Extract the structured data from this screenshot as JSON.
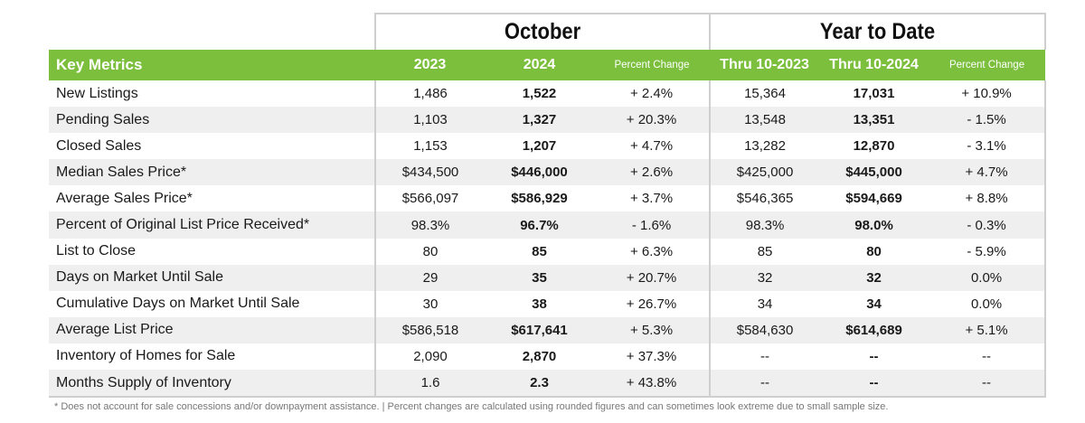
{
  "groups": {
    "october": "October",
    "ytd": "Year to Date"
  },
  "headers": {
    "metric": "Key Metrics",
    "y2023": "2023",
    "y2024": "2024",
    "pct1": "Percent Change",
    "ytd2023": "Thru 10-2023",
    "ytd2024": "Thru 10-2024",
    "pct2": "Percent Change"
  },
  "accent_color": "#7bbf3d",
  "rows": [
    {
      "label": "New Listings",
      "v2023": "1,486",
      "v2024": "1,522",
      "pct": "+ 2.4%",
      "ytd2023": "15,364",
      "ytd2024": "17,031",
      "ytdpct": "+ 10.9%"
    },
    {
      "label": "Pending Sales",
      "v2023": "1,103",
      "v2024": "1,327",
      "pct": "+ 20.3%",
      "ytd2023": "13,548",
      "ytd2024": "13,351",
      "ytdpct": "- 1.5%"
    },
    {
      "label": "Closed Sales",
      "v2023": "1,153",
      "v2024": "1,207",
      "pct": "+ 4.7%",
      "ytd2023": "13,282",
      "ytd2024": "12,870",
      "ytdpct": "- 3.1%"
    },
    {
      "label": "Median Sales Price*",
      "v2023": "$434,500",
      "v2024": "$446,000",
      "pct": "+ 2.6%",
      "ytd2023": "$425,000",
      "ytd2024": "$445,000",
      "ytdpct": "+ 4.7%"
    },
    {
      "label": "Average Sales Price*",
      "v2023": "$566,097",
      "v2024": "$586,929",
      "pct": "+ 3.7%",
      "ytd2023": "$546,365",
      "ytd2024": "$594,669",
      "ytdpct": "+ 8.8%"
    },
    {
      "label": "Percent of Original List Price Received*",
      "v2023": "98.3%",
      "v2024": "96.7%",
      "pct": "- 1.6%",
      "ytd2023": "98.3%",
      "ytd2024": "98.0%",
      "ytdpct": "- 0.3%"
    },
    {
      "label": "List to Close",
      "v2023": "80",
      "v2024": "85",
      "pct": "+ 6.3%",
      "ytd2023": "85",
      "ytd2024": "80",
      "ytdpct": "- 5.9%"
    },
    {
      "label": "Days on Market Until Sale",
      "v2023": "29",
      "v2024": "35",
      "pct": "+ 20.7%",
      "ytd2023": "32",
      "ytd2024": "32",
      "ytdpct": "0.0%"
    },
    {
      "label": "Cumulative Days on Market Until Sale",
      "v2023": "30",
      "v2024": "38",
      "pct": "+ 26.7%",
      "ytd2023": "34",
      "ytd2024": "34",
      "ytdpct": "0.0%"
    },
    {
      "label": "Average List Price",
      "v2023": "$586,518",
      "v2024": "$617,641",
      "pct": "+ 5.3%",
      "ytd2023": "$584,630",
      "ytd2024": "$614,689",
      "ytdpct": "+ 5.1%"
    },
    {
      "label": "Inventory of Homes for Sale",
      "v2023": "2,090",
      "v2024": "2,870",
      "pct": "+ 37.3%",
      "ytd2023": "--",
      "ytd2024": "--",
      "ytdpct": "--"
    },
    {
      "label": "Months Supply of Inventory",
      "v2023": "1.6",
      "v2024": "2.3",
      "pct": "+ 43.8%",
      "ytd2023": "--",
      "ytd2024": "--",
      "ytdpct": "--"
    }
  ],
  "footnote": "* Does not account for sale concessions and/or downpayment assistance.  |  Percent changes are calculated using rounded figures and can sometimes look extreme due to small sample size."
}
